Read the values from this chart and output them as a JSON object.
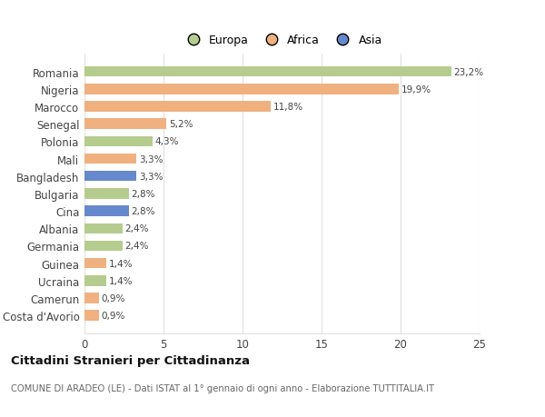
{
  "categories": [
    "Romania",
    "Nigeria",
    "Marocco",
    "Senegal",
    "Polonia",
    "Mali",
    "Bangladesh",
    "Bulgaria",
    "Cina",
    "Albania",
    "Germania",
    "Guinea",
    "Ucraina",
    "Camerun",
    "Costa d'Avorio"
  ],
  "values": [
    23.2,
    19.9,
    11.8,
    5.2,
    4.3,
    3.3,
    3.3,
    2.8,
    2.8,
    2.4,
    2.4,
    1.4,
    1.4,
    0.9,
    0.9
  ],
  "labels": [
    "23,2%",
    "19,9%",
    "11,8%",
    "5,2%",
    "4,3%",
    "3,3%",
    "3,3%",
    "2,8%",
    "2,8%",
    "2,4%",
    "2,4%",
    "1,4%",
    "1,4%",
    "0,9%",
    "0,9%"
  ],
  "bar_colors": [
    "#b5cc8e",
    "#f0b080",
    "#f0b080",
    "#f0b080",
    "#b5cc8e",
    "#f0b080",
    "#6688cc",
    "#b5cc8e",
    "#6688cc",
    "#b5cc8e",
    "#b5cc8e",
    "#f0b080",
    "#b5cc8e",
    "#f0b080",
    "#f0b080"
  ],
  "xlim": [
    0,
    25
  ],
  "xticks": [
    0,
    5,
    10,
    15,
    20,
    25
  ],
  "title": "Cittadini Stranieri per Cittadinanza",
  "subtitle": "COMUNE DI ARADEO (LE) - Dati ISTAT al 1° gennaio di ogni anno - Elaborazione TUTTITALIA.IT",
  "legend_labels": [
    "Europa",
    "Africa",
    "Asia"
  ],
  "legend_colors": [
    "#b5cc8e",
    "#f0b080",
    "#6688cc"
  ],
  "bg_color": "#ffffff",
  "grid_color": "#e0e0e0",
  "label_color": "#555555",
  "text_color": "#444444"
}
